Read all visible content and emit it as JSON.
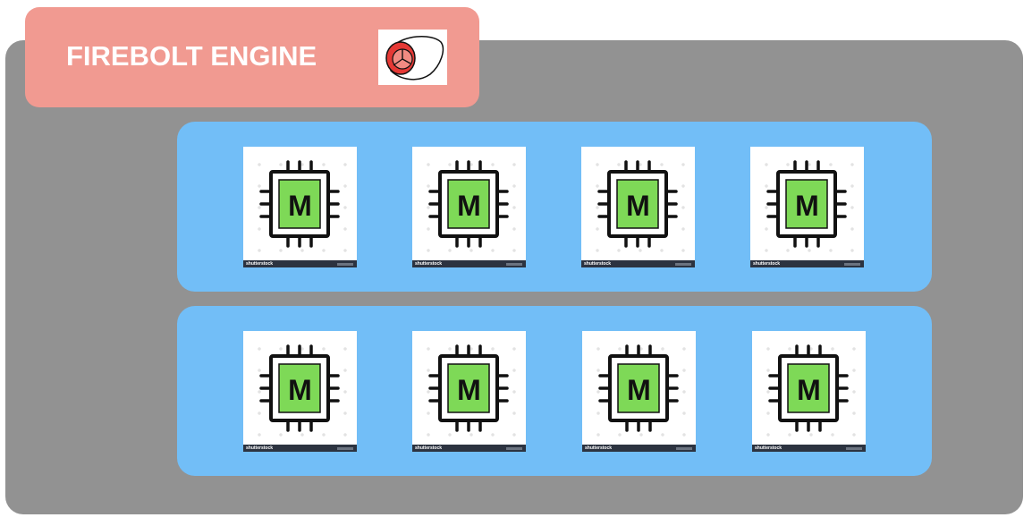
{
  "header": {
    "title": "FIREBOLT ENGINE",
    "logo_icon": "firebolt-logo-icon"
  },
  "rows": [
    {
      "name": "row-1",
      "tiles": [
        {
          "letter": "M",
          "watermark": "shutterstock"
        },
        {
          "letter": "M",
          "watermark": "shutterstock"
        },
        {
          "letter": "M",
          "watermark": "shutterstock"
        },
        {
          "letter": "M",
          "watermark": "shutterstock"
        }
      ]
    },
    {
      "name": "row-2",
      "tiles": [
        {
          "letter": "M",
          "watermark": "shutterstock"
        },
        {
          "letter": "M",
          "watermark": "shutterstock"
        },
        {
          "letter": "M",
          "watermark": "shutterstock"
        },
        {
          "letter": "M",
          "watermark": "shutterstock"
        }
      ]
    }
  ],
  "colors": {
    "engine_bg": "#929292",
    "header_bg": "#f19a91",
    "row_bg": "#72bef7",
    "chip_core": "#7ed957"
  }
}
